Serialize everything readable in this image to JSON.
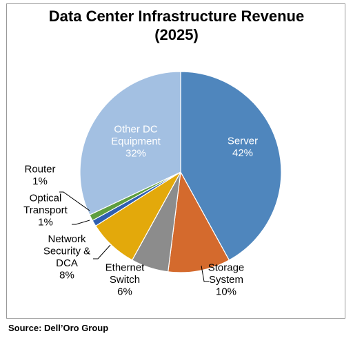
{
  "chart_data": {
    "type": "pie",
    "title": "Data Center Infrastructure Revenue",
    "subtitle": "(2025)",
    "start": "top, clockwise",
    "slices": [
      {
        "name": "Server",
        "label_lines": [
          "Server",
          "42%"
        ],
        "value": 42,
        "color": "#4f86bd",
        "label_color": "#ffffff"
      },
      {
        "name": "Storage System",
        "label_lines": [
          "Storage",
          "System",
          "10%"
        ],
        "value": 10,
        "color": "#d46a2d",
        "label_color": "#000000"
      },
      {
        "name": "Ethernet Switch",
        "label_lines": [
          "Ethernet",
          "Switch",
          "6%"
        ],
        "value": 6,
        "color": "#8c8c8c",
        "label_color": "#000000"
      },
      {
        "name": "Network Security & DCA",
        "label_lines": [
          "Network",
          "Security &",
          "DCA",
          "8%"
        ],
        "value": 8,
        "color": "#e3a90b",
        "label_color": "#000000"
      },
      {
        "name": "Optical Transport",
        "label_lines": [
          "Optical",
          "Transport",
          "1%"
        ],
        "value": 1,
        "color": "#2f5fb1",
        "label_color": "#000000"
      },
      {
        "name": "Router",
        "label_lines": [
          "Router",
          "1%"
        ],
        "value": 1,
        "color": "#5e9e3f",
        "label_color": "#000000"
      },
      {
        "name": "Other DC Equipment",
        "label_lines": [
          "Other DC",
          "Equipment",
          "32%"
        ],
        "value": 32,
        "color": "#a3c0e2",
        "label_color": "#ffffff"
      }
    ]
  },
  "source": "Source: Dell’Oro Group"
}
